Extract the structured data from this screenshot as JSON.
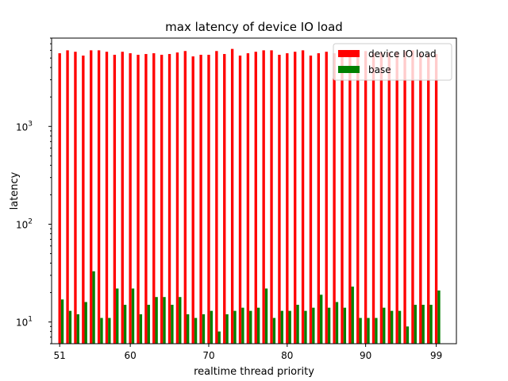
{
  "chart_data": {
    "type": "bar",
    "title": "max latency of device IO load",
    "xlabel": "realtime thread priority",
    "ylabel": "latency",
    "yscale": "log",
    "ylim": [
      6,
      8000
    ],
    "xlim": [
      49.8,
      101.4
    ],
    "grid": false,
    "legend_position": "top-right",
    "x_ticks": [
      51,
      60,
      70,
      80,
      90,
      99
    ],
    "y_ticks": [
      {
        "value": 10,
        "base": "10",
        "exp": "1"
      },
      {
        "value": 100,
        "base": "10",
        "exp": "2"
      },
      {
        "value": 1000,
        "base": "10",
        "exp": "3"
      }
    ],
    "categories": [
      51,
      52,
      53,
      54,
      55,
      56,
      57,
      58,
      59,
      60,
      61,
      62,
      63,
      64,
      65,
      66,
      67,
      68,
      69,
      70,
      71,
      72,
      73,
      74,
      75,
      76,
      77,
      78,
      79,
      80,
      81,
      82,
      83,
      84,
      85,
      86,
      87,
      88,
      89,
      90,
      91,
      92,
      93,
      94,
      95,
      96,
      97,
      98,
      99
    ],
    "series": [
      {
        "name": "device IO load",
        "color": "#ff0000",
        "values": [
          5600,
          6000,
          5800,
          5300,
          6000,
          6000,
          5800,
          5400,
          5800,
          5600,
          5400,
          5500,
          5600,
          5400,
          5500,
          5700,
          5900,
          5200,
          5400,
          5400,
          5900,
          5500,
          6200,
          5300,
          5600,
          5800,
          6000,
          6000,
          5400,
          5600,
          5800,
          6000,
          5300,
          5600,
          5800,
          5600,
          5700,
          5500,
          5600,
          5900,
          5600,
          5700,
          5700,
          5800,
          5900,
          6000,
          5600,
          5500,
          5500
        ]
      },
      {
        "name": "base",
        "color": "#008000",
        "values": [
          17,
          13,
          12,
          16,
          33,
          11,
          11,
          22,
          15,
          22,
          12,
          15,
          18,
          18,
          15,
          18,
          12,
          11,
          12,
          13,
          8,
          12,
          13,
          14,
          13,
          14,
          22,
          11,
          13,
          13,
          15,
          13,
          14,
          19,
          14,
          16,
          14,
          23,
          11,
          11,
          11,
          14,
          13,
          13,
          9,
          15,
          15,
          15,
          21
        ]
      }
    ]
  }
}
